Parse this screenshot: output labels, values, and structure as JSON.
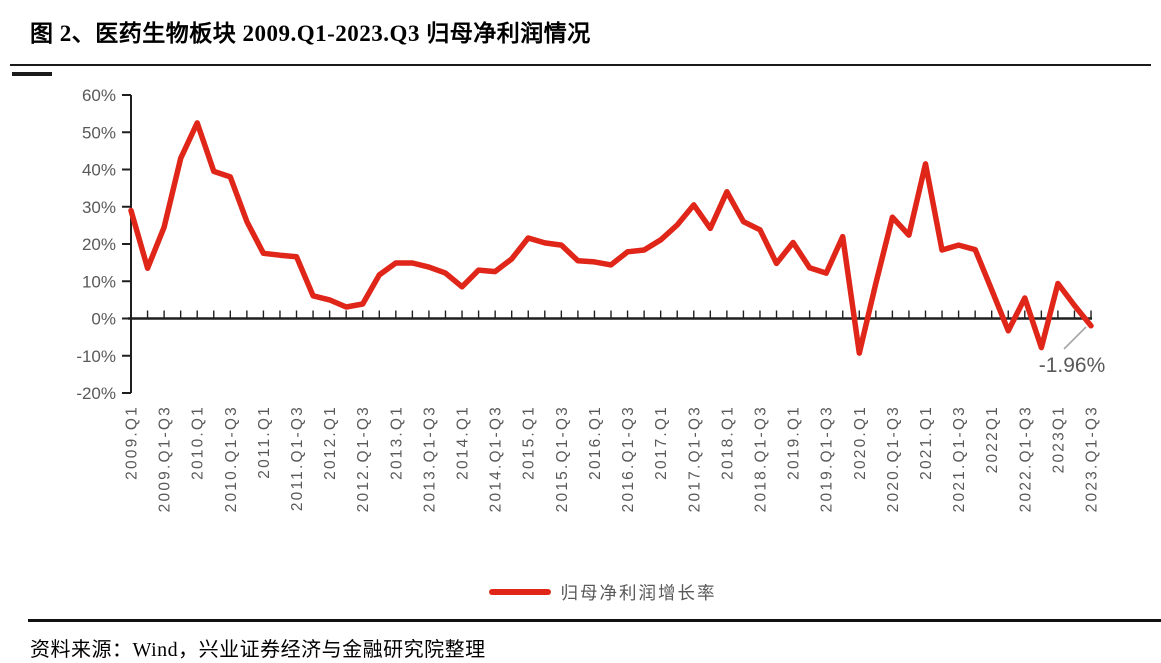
{
  "page": {
    "title": "图 2、医药生物板块 2009.Q1-2023.Q3 归母净利润情况",
    "source": "资料来源：Wind，兴业证券经济与金融研究院整理"
  },
  "legend": {
    "label": "归母净利润增长率",
    "line_color": "#e02519"
  },
  "annotation": {
    "text": "-1.96%"
  },
  "colors": {
    "series_red": "#e02519",
    "axis": "#1f1f1f",
    "tick_label_gray": "#595959",
    "leader_line_gray": "#a6a6a6"
  },
  "chart_data": {
    "type": "line",
    "title": "医药生物板块 2009.Q1-2023.Q3 归母净利润情况",
    "xlabel": "",
    "ylabel": "",
    "ylim": [
      -20,
      60
    ],
    "grid": false,
    "legend_position": "bottom",
    "x_tick_every": 2,
    "x_tick_labels": [
      "2009.Q1",
      "2009.Q1-Q3",
      "2010.Q1",
      "2010.Q1-Q3",
      "2011.Q1",
      "2011.Q1-Q3",
      "2012.Q1",
      "2012.Q1-Q3",
      "2013.Q1",
      "2013.Q1-Q3",
      "2014.Q1",
      "2014.Q1-Q3",
      "2015.Q1",
      "2015.Q1-Q3",
      "2016.Q1",
      "2016.Q1-Q3",
      "2017.Q1",
      "2017.Q1-Q3",
      "2018.Q1",
      "2018.Q1-Q3",
      "2019.Q1",
      "2019.Q1-Q3",
      "2020.Q1",
      "2020.Q1-Q3",
      "2021.Q1",
      "2021.Q1-Q3",
      "2022Q1",
      "2022.Q1-Q3",
      "2023Q1",
      "2023.Q1-Q3"
    ],
    "y_tick_labels": [
      "60%",
      "50%",
      "40%",
      "30%",
      "20%",
      "10%",
      "0%",
      "-10%",
      "-20%"
    ],
    "y_tick_values": [
      60,
      50,
      40,
      30,
      20,
      10,
      0,
      -10,
      -20
    ],
    "series": [
      {
        "name": "归母净利润增长率",
        "color": "#e02519",
        "unit": "%",
        "values": [
          29,
          13.5,
          24.5,
          43,
          52.5,
          39.5,
          38,
          26,
          17.5,
          17,
          16.6,
          6.1,
          5,
          3.1,
          3.9,
          11.7,
          14.9,
          14.9,
          13.8,
          12.2,
          8.5,
          13,
          12.6,
          16,
          21.6,
          20.3,
          19.7,
          15.5,
          15.2,
          14.4,
          17.9,
          18.4,
          21.1,
          25.1,
          30.5,
          24.2,
          34,
          26,
          23.8,
          14.8,
          20.4,
          13.6,
          12.2,
          22,
          -9.3,
          9.4,
          27.2,
          22.4,
          41.5,
          18.4,
          19.7,
          18.5,
          7.7,
          -3.3,
          5.5,
          -7.8,
          9.4,
          3.5,
          -1.96
        ]
      }
    ],
    "last_point_label": "-1.96%"
  }
}
